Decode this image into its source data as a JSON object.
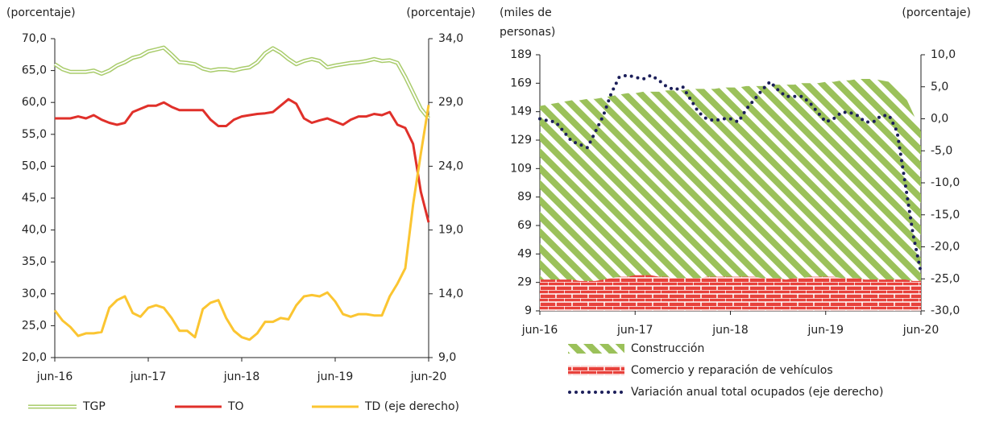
{
  "chart_data": [
    {
      "type": "line",
      "y_label": "(porcentaje)",
      "y2_label": "(porcentaje)",
      "categories": [
        "jun-16",
        null,
        null,
        null,
        null,
        null,
        null,
        null,
        null,
        null,
        null,
        null,
        "jun-17",
        null,
        null,
        null,
        null,
        null,
        null,
        null,
        null,
        null,
        null,
        null,
        "jun-18",
        null,
        null,
        null,
        null,
        null,
        null,
        null,
        null,
        null,
        null,
        null,
        "jun-19",
        null,
        null,
        null,
        null,
        null,
        null,
        null,
        null,
        null,
        null,
        null,
        "jun-20"
      ],
      "ylim": [
        20,
        70
      ],
      "yticks": [
        {
          "value": 20,
          "label": "20,0"
        },
        {
          "value": 25,
          "label": "25,0"
        },
        {
          "value": 30,
          "label": "30,0"
        },
        {
          "value": 35,
          "label": "35,0"
        },
        {
          "value": 40,
          "label": "40,0"
        },
        {
          "value": 45,
          "label": "45,0"
        },
        {
          "value": 50,
          "label": "50,0"
        },
        {
          "value": 55,
          "label": "55,0"
        },
        {
          "value": 60,
          "label": "60,0"
        },
        {
          "value": 65,
          "label": "65,0"
        },
        {
          "value": 70,
          "label": "70,0"
        }
      ],
      "y2lim": [
        9,
        34
      ],
      "y2ticks": [
        {
          "value": 9,
          "label": "9,0"
        },
        {
          "value": 14,
          "label": "14,0"
        },
        {
          "value": 19,
          "label": "19,0"
        },
        {
          "value": 24,
          "label": "24,0"
        },
        {
          "value": 29,
          "label": "29,0"
        },
        {
          "value": 34,
          "label": "34,0"
        }
      ],
      "legend": "bottom",
      "series": [
        {
          "name": "TGP",
          "color": "#a9cc6b",
          "style": "double",
          "values": [
            66.0,
            65.2,
            64.8,
            64.8,
            64.8,
            65.0,
            64.5,
            65.0,
            65.8,
            66.3,
            67.0,
            67.3,
            68.0,
            68.3,
            68.6,
            67.5,
            66.3,
            66.2,
            66.0,
            65.3,
            65.0,
            65.2,
            65.2,
            65.0,
            65.3,
            65.5,
            66.3,
            67.7,
            68.5,
            67.8,
            66.8,
            66.0,
            66.5,
            66.8,
            66.5,
            65.5,
            65.8,
            66.0,
            66.2,
            66.3,
            66.5,
            66.8,
            66.5,
            66.6,
            66.2,
            64.0,
            61.5,
            59.0,
            57.5
          ]
        },
        {
          "name": "TO",
          "color": "#e0302a",
          "style": "solid",
          "values": [
            57.5,
            57.5,
            57.5,
            57.8,
            57.5,
            58.0,
            57.3,
            56.8,
            56.5,
            56.8,
            58.5,
            59.0,
            59.5,
            59.5,
            60.0,
            59.3,
            58.8,
            58.8,
            58.8,
            58.8,
            57.3,
            56.3,
            56.3,
            57.3,
            57.8,
            58.0,
            58.2,
            58.3,
            58.5,
            59.5,
            60.5,
            59.8,
            57.5,
            56.8,
            57.2,
            57.5,
            57.0,
            56.5,
            57.3,
            57.8,
            57.8,
            58.2,
            58.0,
            58.5,
            56.5,
            56.0,
            53.5,
            46.0,
            41.2
          ]
        },
        {
          "name": "TD (eje derecho)",
          "color": "#fbc531",
          "style": "solid",
          "axis": "y2",
          "values": [
            12.7,
            11.9,
            11.4,
            10.7,
            10.9,
            10.9,
            11.0,
            12.9,
            13.5,
            13.8,
            12.5,
            12.2,
            12.9,
            13.1,
            12.9,
            12.1,
            11.1,
            11.1,
            10.6,
            12.8,
            13.3,
            13.5,
            12.1,
            11.1,
            10.6,
            10.4,
            10.9,
            11.8,
            11.8,
            12.1,
            12.0,
            13.1,
            13.8,
            13.9,
            13.8,
            14.1,
            13.4,
            12.4,
            12.2,
            12.4,
            12.4,
            12.3,
            12.3,
            13.8,
            14.8,
            16.0,
            21.0,
            25.0,
            28.8
          ]
        }
      ]
    },
    {
      "type": "area",
      "y_label": "(miles de personas)",
      "y2_label": "(porcentaje)",
      "categories": [
        "jun-16",
        null,
        null,
        null,
        null,
        null,
        null,
        null,
        null,
        null,
        null,
        null,
        "jun-17",
        null,
        null,
        null,
        null,
        null,
        null,
        null,
        null,
        null,
        null,
        null,
        "jun-18",
        null,
        null,
        null,
        null,
        null,
        null,
        null,
        null,
        null,
        null,
        null,
        "jun-19",
        null,
        null,
        null,
        null,
        null,
        null,
        null,
        null,
        null,
        null,
        null,
        "jun-20"
      ],
      "ylim": [
        9,
        189
      ],
      "yticks": [
        9,
        29,
        49,
        69,
        89,
        109,
        129,
        149,
        169,
        189
      ],
      "y2lim": [
        -30,
        10
      ],
      "y2ticks": [
        {
          "value": -30,
          "label": "-30,0"
        },
        {
          "value": -25,
          "label": "-25,0"
        },
        {
          "value": -20,
          "label": "-20,0"
        },
        {
          "value": -15,
          "label": "-15,0"
        },
        {
          "value": -10,
          "label": "-10,0"
        },
        {
          "value": -5,
          "label": "-5,0"
        },
        {
          "value": 0,
          "label": "0,0"
        },
        {
          "value": 5,
          "label": "5,0"
        },
        {
          "value": 10,
          "label": "10,0"
        }
      ],
      "legend": "bottom",
      "series": [
        {
          "name": "Construcción",
          "color": "#9bc15a",
          "style": "hatch",
          "values": [
            153,
            154,
            155,
            156,
            157,
            157,
            158,
            158,
            159,
            160,
            161,
            162,
            162,
            163,
            163,
            163,
            164,
            164,
            164,
            165,
            165,
            165,
            165,
            166,
            166,
            166,
            167,
            167,
            167,
            168,
            168,
            168,
            168,
            169,
            169,
            169,
            170,
            170,
            171,
            171,
            172,
            172,
            172,
            171,
            170,
            166,
            160,
            148,
            135
          ]
        },
        {
          "name": "Comercio y reparación de vehículos",
          "color": "#e8413b",
          "style": "brick",
          "values": [
            31,
            31,
            31,
            31,
            31,
            30,
            30,
            30,
            31,
            32,
            33,
            33,
            34,
            34,
            34,
            33,
            33,
            32,
            32,
            32,
            32,
            33,
            33,
            33,
            33,
            33,
            33,
            33,
            32,
            32,
            32,
            31,
            32,
            32,
            33,
            33,
            33,
            33,
            32,
            32,
            32,
            31,
            31,
            31,
            31,
            31,
            31,
            30,
            30
          ]
        },
        {
          "name": "Variación anual total ocupados (eje derecho)",
          "color": "#1c1f5a",
          "style": "dotted",
          "type": "line",
          "axis": "y2",
          "values": [
            0.0,
            -0.3,
            -0.5,
            -2.0,
            -3.5,
            -4.0,
            -4.5,
            -2.0,
            0.5,
            4.0,
            6.5,
            6.8,
            6.5,
            6.2,
            6.8,
            6.0,
            5.0,
            4.5,
            5.0,
            3.0,
            1.0,
            0.0,
            -0.3,
            0.0,
            0.0,
            -0.5,
            1.5,
            3.0,
            4.5,
            5.8,
            4.5,
            3.5,
            3.5,
            3.5,
            2.5,
            1.0,
            -0.5,
            0.0,
            1.0,
            1.0,
            0.5,
            -0.5,
            -0.5,
            0.5,
            0.5,
            -2.0,
            -10.0,
            -18.0,
            -24.0
          ]
        }
      ]
    }
  ]
}
